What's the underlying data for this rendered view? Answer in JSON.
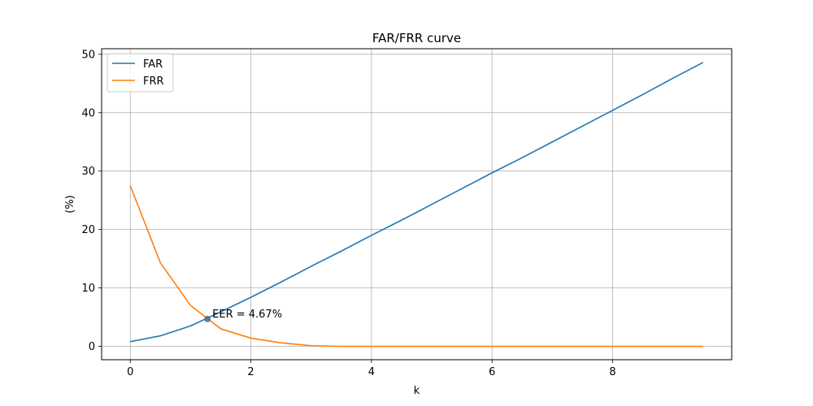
{
  "chart_data": {
    "type": "line",
    "title": "FAR/FRR curve",
    "xlabel": "k",
    "ylabel": "(%)",
    "xlim": [
      -0.475,
      9.975
    ],
    "ylim": [
      -2.29,
      50.95
    ],
    "xticks": [
      0,
      2,
      4,
      6,
      8
    ],
    "yticks": [
      0,
      10,
      20,
      30,
      40,
      50
    ],
    "grid": true,
    "legend_position": "upper-left",
    "series": [
      {
        "name": "FAR",
        "color": "#1f77b4",
        "x": [
          0,
          0.5,
          1,
          1.5,
          2,
          2.5,
          3,
          3.5,
          4,
          4.5,
          5,
          5.5,
          6,
          6.5,
          7,
          7.5,
          8,
          8.5,
          9,
          9.5
        ],
        "y": [
          0.8,
          1.8,
          3.5,
          5.9,
          8.4,
          11.0,
          13.7,
          16.3,
          19.0,
          21.6,
          24.3,
          27.0,
          29.7,
          32.3,
          35.0,
          37.7,
          40.4,
          43.1,
          45.9,
          48.6
        ]
      },
      {
        "name": "FRR",
        "color": "#ff7f0e",
        "x": [
          0,
          0.5,
          1,
          1.5,
          2,
          2.5,
          3,
          3.5,
          4,
          4.5,
          5,
          5.5,
          6,
          6.5,
          7,
          7.5,
          8,
          8.5,
          9,
          9.5
        ],
        "y": [
          27.5,
          14.3,
          7.0,
          3.0,
          1.4,
          0.6,
          0.1,
          0.0,
          0.0,
          0.0,
          0.0,
          0.0,
          0.0,
          0.0,
          0.0,
          0.0,
          0.0,
          0.0,
          0.0,
          0.0
        ]
      }
    ],
    "annotations": [
      {
        "text": "EER = 4.67%",
        "x": 1.28,
        "y": 4.67,
        "marker_color": "#4a6f8a"
      }
    ]
  }
}
